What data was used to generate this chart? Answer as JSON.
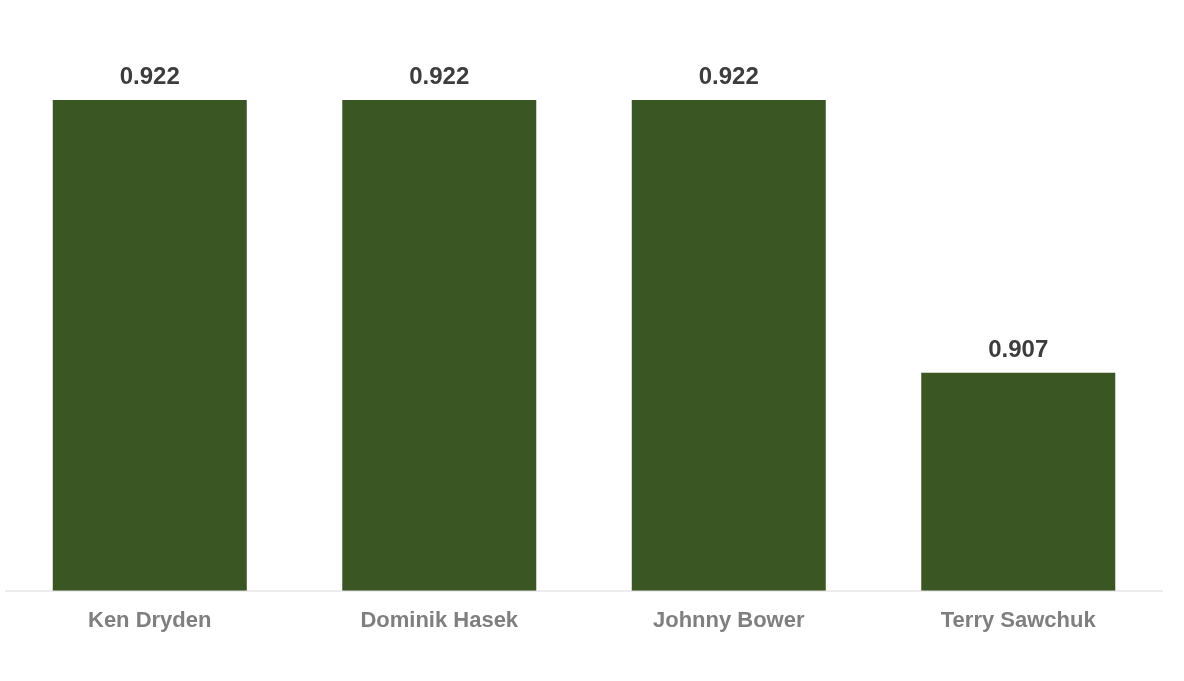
{
  "chart_data": {
    "type": "bar",
    "categories": [
      "Ken Dryden",
      "Dominik Hasek",
      "Johnny Bower",
      "Terry Sawchuk"
    ],
    "values": [
      0.922,
      0.922,
      0.922,
      0.907
    ],
    "color": "#3a5723",
    "data_labels": true,
    "ylim": [
      0.895,
      0.922
    ]
  }
}
